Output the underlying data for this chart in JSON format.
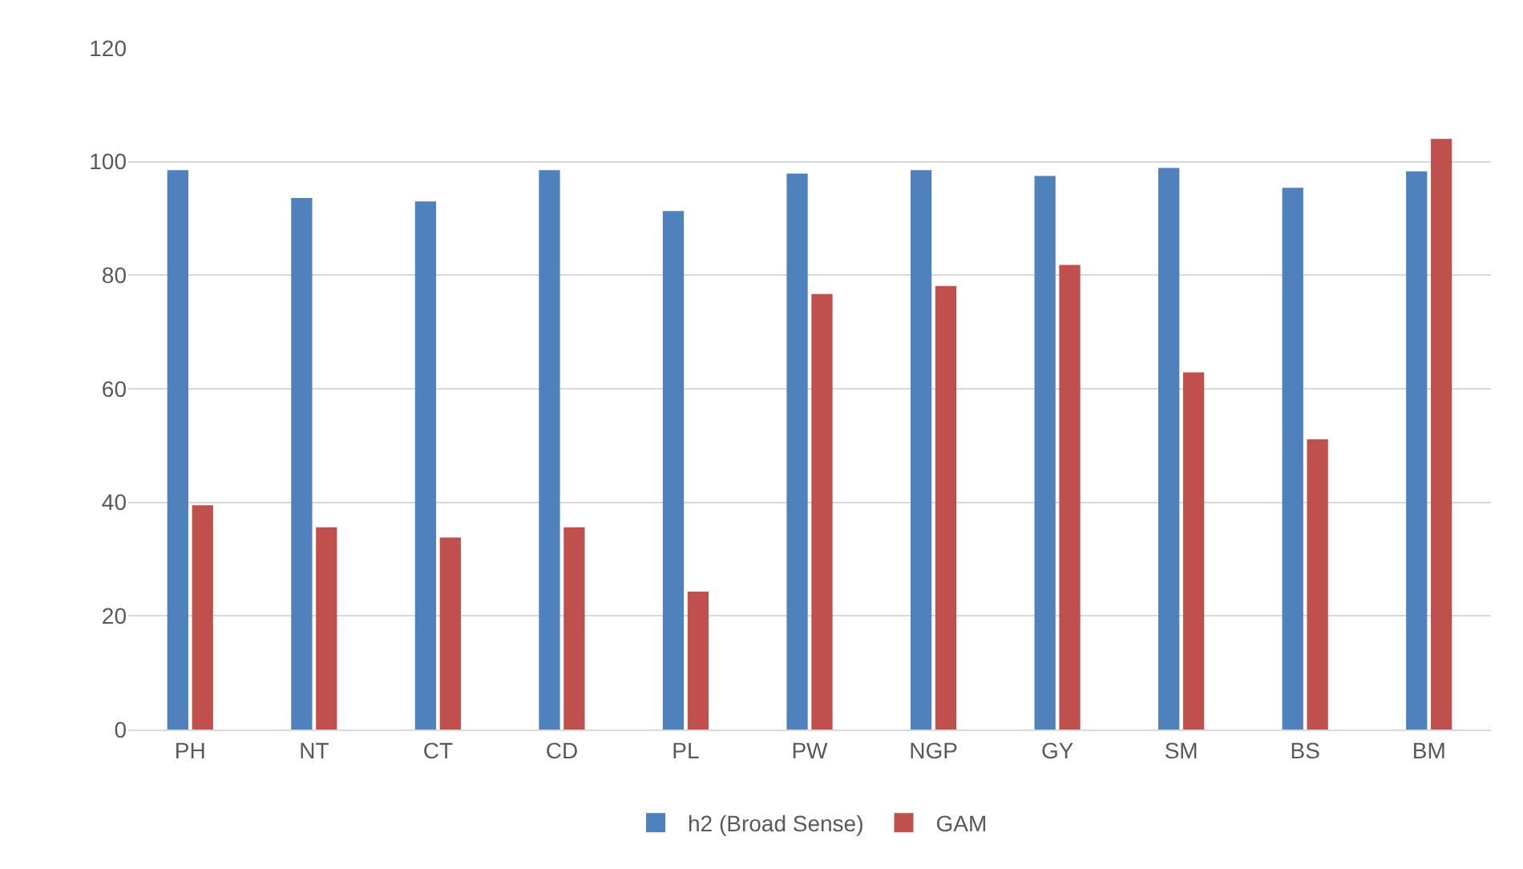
{
  "chart_data": {
    "type": "bar",
    "categories": [
      "PH",
      "NT",
      "CT",
      "CD",
      "PL",
      "PW",
      "NGP",
      "GY",
      "SM",
      "BS",
      "BM"
    ],
    "series": [
      {
        "name": "h2 (Broad Sense)",
        "color": "#4f81bd",
        "values": [
          98.5,
          93.6,
          93.0,
          98.5,
          91.3,
          97.9,
          98.5,
          97.5,
          98.9,
          95.4,
          98.3
        ]
      },
      {
        "name": "GAM",
        "color": "#c0504d",
        "values": [
          39.5,
          35.6,
          33.8,
          35.6,
          24.3,
          76.7,
          78.1,
          81.8,
          62.9,
          51.1,
          104.0
        ]
      }
    ],
    "ylim": [
      0,
      120
    ],
    "yticks": [
      0,
      20,
      40,
      60,
      80,
      100,
      120
    ],
    "grid": "y",
    "legend": "bottom"
  }
}
